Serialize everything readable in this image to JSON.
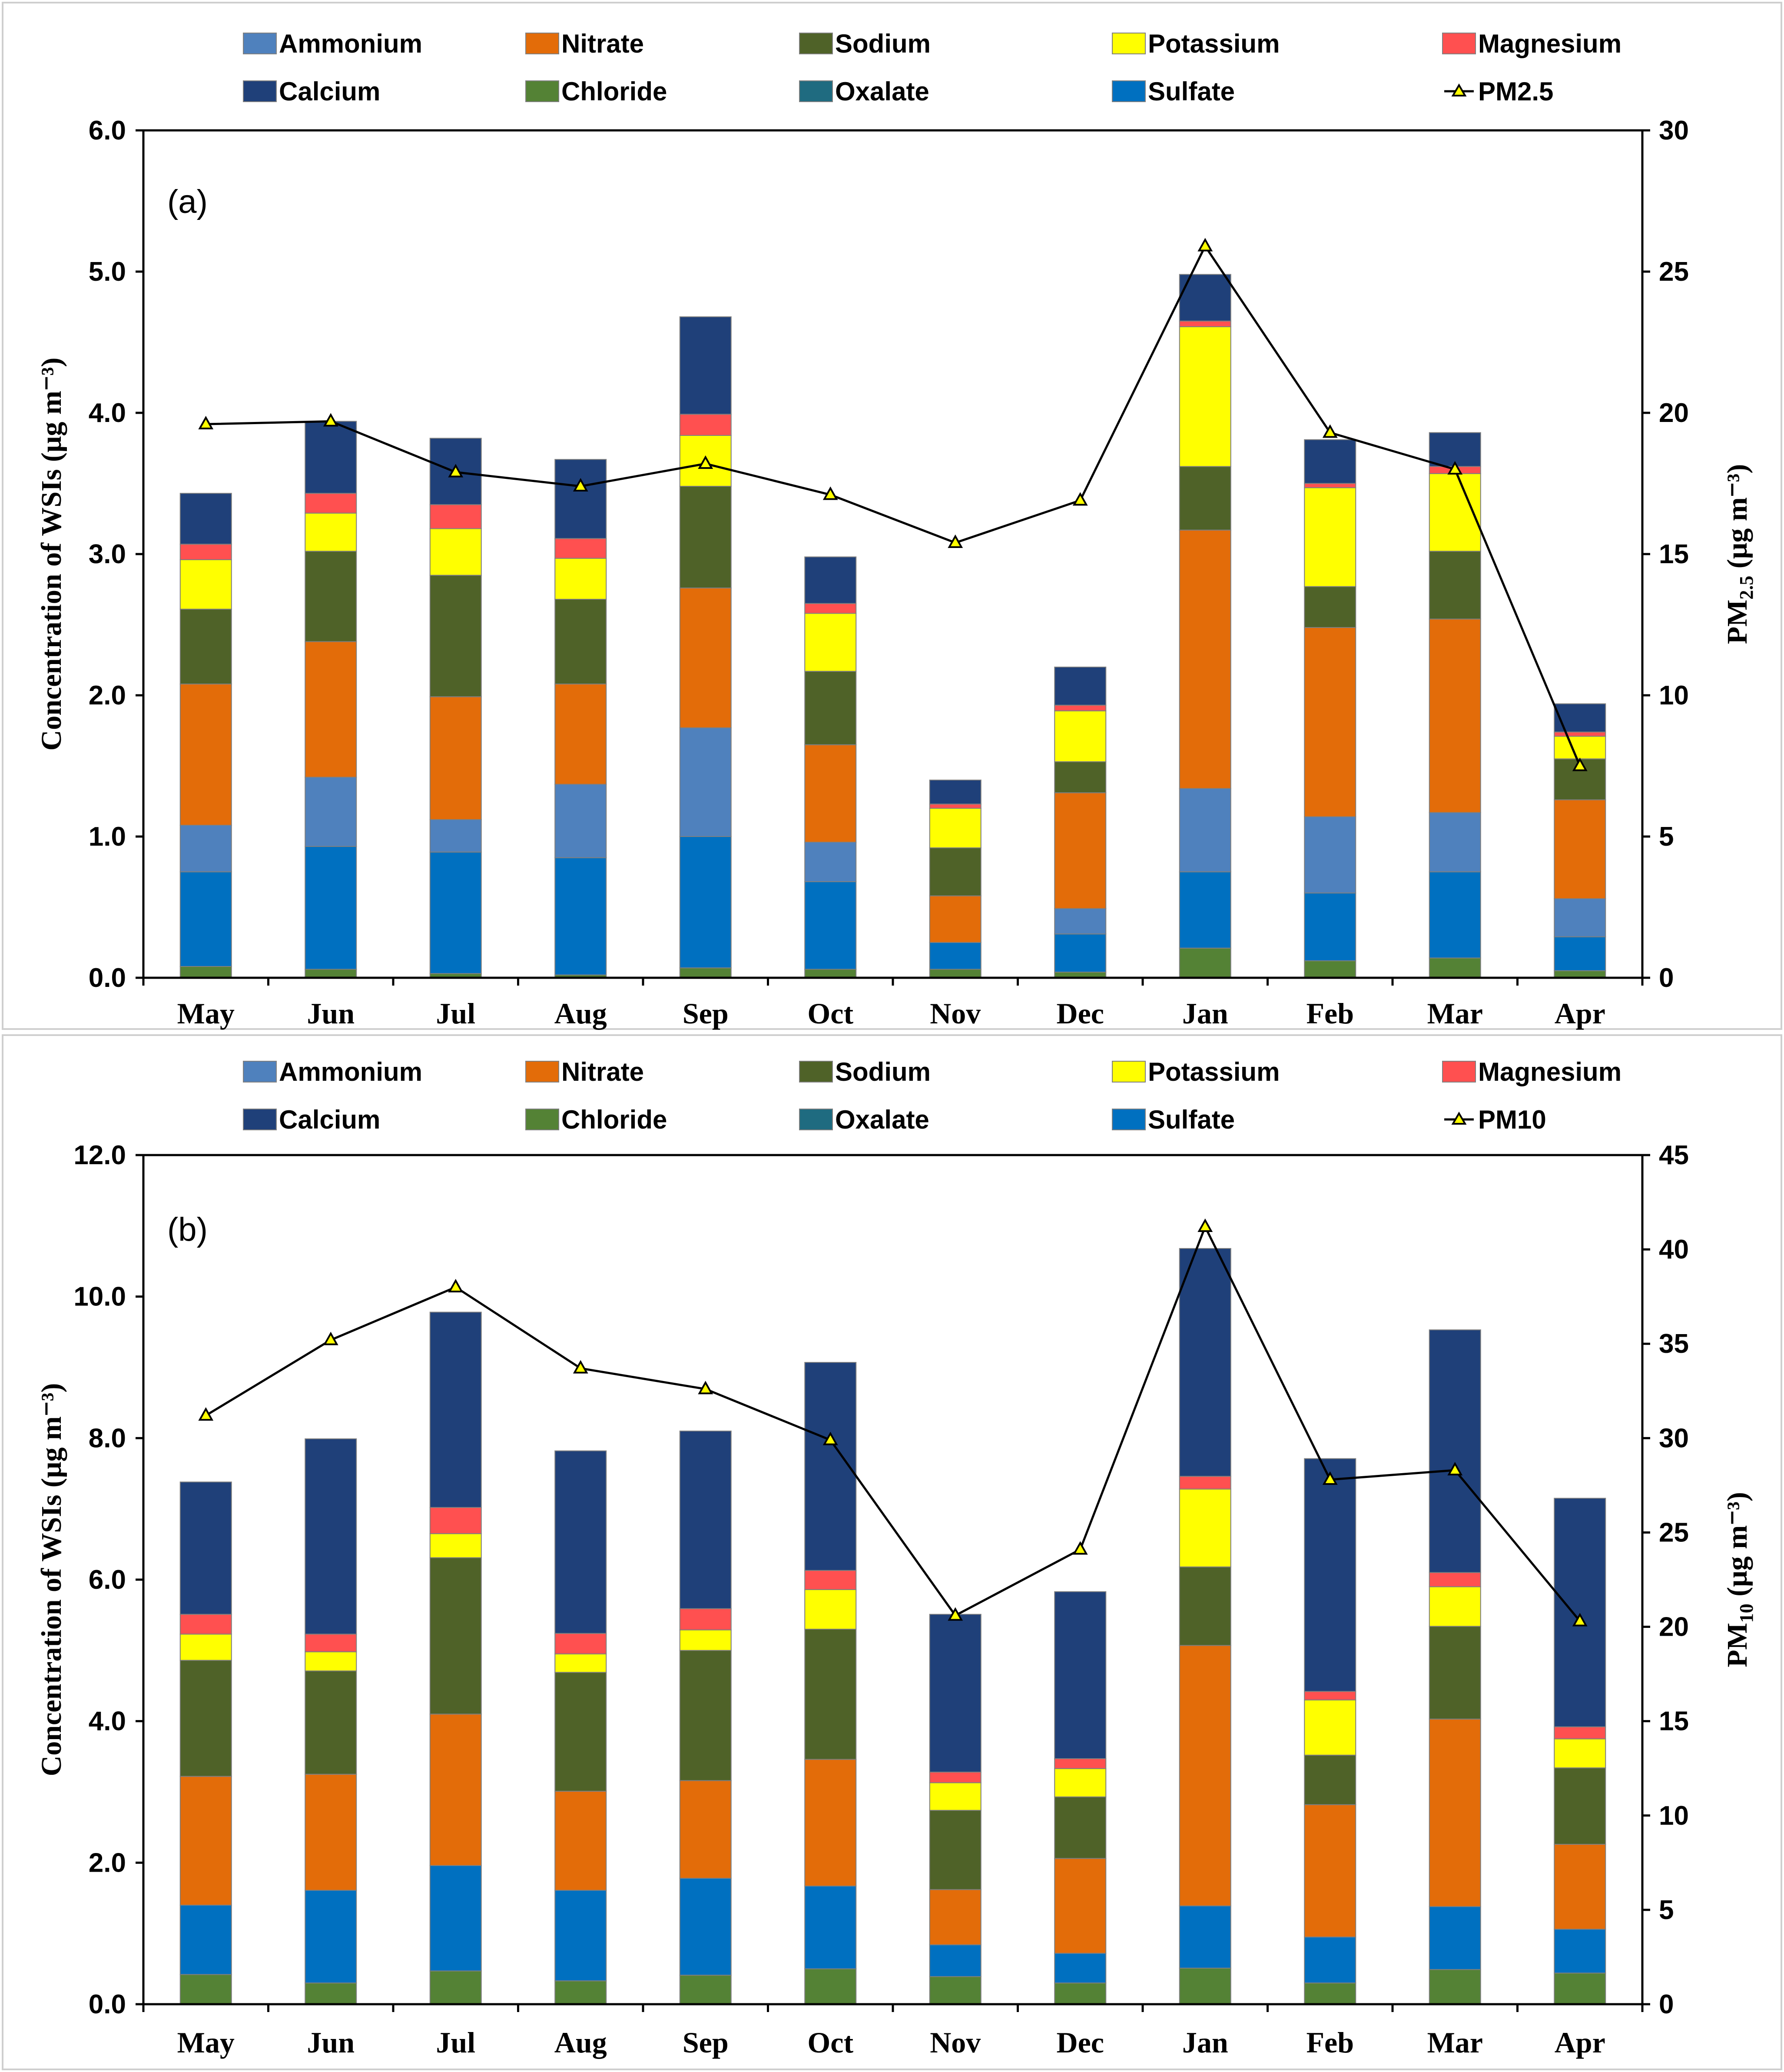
{
  "chart_data": [
    {
      "type": "bar",
      "stacked": true,
      "panel_label": "(a)",
      "categories": [
        "May",
        "Jun",
        "Jul",
        "Aug",
        "Sep",
        "Oct",
        "Nov",
        "Dec",
        "Jan",
        "Feb",
        "Mar",
        "Apr"
      ],
      "ylabel": "Concentration of WSIs (μg m⁻³)",
      "ylim": [
        0,
        6
      ],
      "yticks": [
        "0.0",
        "1.0",
        "2.0",
        "3.0",
        "4.0",
        "5.0",
        "6.0"
      ],
      "y2label": {
        "main": "PM",
        "sub": "2.5",
        "unit": " (μg m⁻³)"
      },
      "y2lim": [
        0,
        30
      ],
      "y2ticks": [
        "0",
        "5",
        "10",
        "15",
        "20",
        "25",
        "30"
      ],
      "legend": [
        "Ammonium",
        "Nitrate",
        "Sodium",
        "Potassium",
        "Magnesium",
        "Calcium",
        "Chloride",
        "Oxalate",
        "Sulfate",
        "PM2.5"
      ],
      "series": [
        {
          "name": "Chloride",
          "color": "#548235",
          "values": [
            0.08,
            0.06,
            0.03,
            0.02,
            0.07,
            0.06,
            0.06,
            0.04,
            0.21,
            0.12,
            0.14,
            0.05
          ]
        },
        {
          "name": "Oxalate",
          "color": "#1f6b80",
          "values": [
            0,
            0,
            0,
            0,
            0,
            0,
            0,
            0,
            0,
            0,
            0,
            0
          ]
        },
        {
          "name": "Sulfate",
          "color": "#0070c0",
          "values": [
            0.67,
            0.87,
            0.86,
            0.83,
            0.93,
            0.62,
            0.19,
            0.27,
            0.54,
            0.48,
            0.61,
            0.24
          ]
        },
        {
          "name": "Ammonium",
          "color": "#4f81bd",
          "values": [
            0.33,
            0.49,
            0.23,
            0.52,
            0.77,
            0.28,
            0,
            0.18,
            0.59,
            0.54,
            0.42,
            0.27
          ]
        },
        {
          "name": "Nitrate",
          "color": "#e36c09",
          "values": [
            1.0,
            0.96,
            0.87,
            0.71,
            0.99,
            0.69,
            0.33,
            0.82,
            1.83,
            1.34,
            1.37,
            0.7
          ]
        },
        {
          "name": "Sodium",
          "color": "#4f6228",
          "values": [
            0.53,
            0.64,
            0.86,
            0.6,
            0.72,
            0.52,
            0.34,
            0.22,
            0.45,
            0.29,
            0.48,
            0.29
          ]
        },
        {
          "name": "Potassium",
          "color": "#ffff00",
          "values": [
            0.35,
            0.27,
            0.33,
            0.29,
            0.36,
            0.41,
            0.28,
            0.36,
            0.99,
            0.7,
            0.55,
            0.16
          ]
        },
        {
          "name": "Magnesium",
          "color": "#ff5050",
          "values": [
            0.11,
            0.14,
            0.17,
            0.14,
            0.15,
            0.07,
            0.03,
            0.04,
            0.04,
            0.03,
            0.05,
            0.03
          ]
        },
        {
          "name": "Calcium",
          "color": "#1f4079",
          "values": [
            0.36,
            0.51,
            0.47,
            0.56,
            0.69,
            0.33,
            0.17,
            0.27,
            0.33,
            0.31,
            0.24,
            0.2
          ]
        }
      ],
      "line_series": {
        "name": "PM2.5",
        "values": [
          19.6,
          19.7,
          17.9,
          17.4,
          18.2,
          17.1,
          15.4,
          16.9,
          25.9,
          19.3,
          18.0,
          7.5
        ]
      }
    },
    {
      "type": "bar",
      "stacked": true,
      "panel_label": "(b)",
      "categories": [
        "May",
        "Jun",
        "Jul",
        "Aug",
        "Sep",
        "Oct",
        "Nov",
        "Dec",
        "Jan",
        "Feb",
        "Mar",
        "Apr"
      ],
      "ylabel": "Concentration of WSIs (μg m⁻³)",
      "ylim": [
        0,
        12
      ],
      "yticks": [
        "0.0",
        "2.0",
        "4.0",
        "6.0",
        "8.0",
        "10.0",
        "12.0"
      ],
      "y2label": {
        "main": "PM",
        "sub": "10",
        "unit": " (μg m⁻³)"
      },
      "y2lim": [
        0,
        45
      ],
      "y2ticks": [
        "0",
        "5",
        "10",
        "15",
        "20",
        "25",
        "30",
        "35",
        "40",
        "45"
      ],
      "legend": [
        "Ammonium",
        "Nitrate",
        "Sodium",
        "Potassium",
        "Magnesium",
        "Calcium",
        "Chloride",
        "Oxalate",
        "Sulfate",
        "PM10"
      ],
      "series": [
        {
          "name": "Chloride",
          "color": "#548235",
          "values": [
            0.42,
            0.3,
            0.47,
            0.33,
            0.41,
            0.5,
            0.39,
            0.3,
            0.51,
            0.3,
            0.49,
            0.44
          ]
        },
        {
          "name": "Oxalate",
          "color": "#1f6b80",
          "values": [
            0,
            0,
            0,
            0,
            0,
            0,
            0,
            0,
            0,
            0,
            0,
            0
          ]
        },
        {
          "name": "Sulfate",
          "color": "#0070c0",
          "values": [
            0.98,
            1.31,
            1.49,
            1.28,
            1.37,
            1.17,
            0.45,
            0.42,
            0.88,
            0.65,
            0.89,
            0.62
          ]
        },
        {
          "name": "Ammonium",
          "color": "#4f81bd",
          "values": [
            0,
            0,
            0,
            0,
            0,
            0,
            0,
            0,
            0,
            0,
            0,
            0
          ]
        },
        {
          "name": "Nitrate",
          "color": "#e36c09",
          "values": [
            1.82,
            1.64,
            2.14,
            1.4,
            1.38,
            1.79,
            0.78,
            1.34,
            3.68,
            1.87,
            2.65,
            1.2
          ]
        },
        {
          "name": "Sodium",
          "color": "#4f6228",
          "values": [
            1.64,
            1.46,
            2.21,
            1.68,
            1.84,
            1.84,
            1.12,
            0.87,
            1.11,
            0.7,
            1.31,
            1.08
          ]
        },
        {
          "name": "Potassium",
          "color": "#ffff00",
          "values": [
            0.37,
            0.27,
            0.34,
            0.26,
            0.29,
            0.56,
            0.39,
            0.4,
            1.1,
            0.78,
            0.56,
            0.41
          ]
        },
        {
          "name": "Magnesium",
          "color": "#ff5050",
          "values": [
            0.28,
            0.25,
            0.37,
            0.29,
            0.3,
            0.27,
            0.15,
            0.14,
            0.18,
            0.12,
            0.2,
            0.17
          ]
        },
        {
          "name": "Calcium",
          "color": "#1f4079",
          "values": [
            1.87,
            2.76,
            2.76,
            2.58,
            2.51,
            2.94,
            2.23,
            2.36,
            3.22,
            3.29,
            3.43,
            3.23
          ]
        }
      ],
      "line_series": {
        "name": "PM10",
        "values": [
          31.2,
          35.2,
          38.0,
          33.7,
          32.6,
          29.9,
          20.6,
          24.1,
          41.2,
          27.8,
          28.3,
          20.3
        ]
      }
    }
  ]
}
